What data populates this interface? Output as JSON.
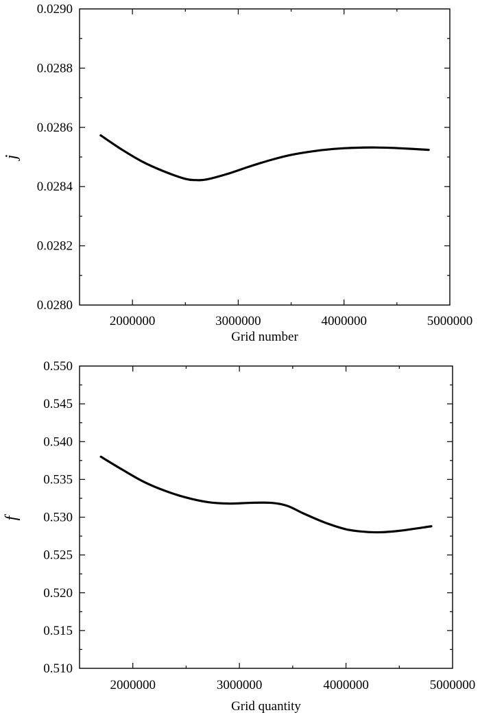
{
  "chart_data": [
    {
      "type": "line",
      "xlabel": "Grid number",
      "ylabel": "j",
      "xlim": [
        1500000,
        5000000
      ],
      "ylim": [
        0.028,
        0.029
      ],
      "x_ticks": [
        "2000000",
        "3000000",
        "4000000",
        "5000000"
      ],
      "y_ticks": [
        "0.0280",
        "0.0282",
        "0.0284",
        "0.0286",
        "0.0288",
        "0.0290"
      ],
      "series": [
        {
          "x": [
            1700000,
            1900000,
            2100000,
            2300000,
            2500000,
            2600000,
            2700000,
            2900000,
            3100000,
            3300000,
            3500000,
            3700000,
            3900000,
            4100000,
            4300000,
            4500000,
            4800000
          ],
          "values": [
            0.028573,
            0.028525,
            0.028483,
            0.028451,
            0.028426,
            0.028422,
            0.028424,
            0.028443,
            0.028467,
            0.028489,
            0.028507,
            0.028519,
            0.028527,
            0.028531,
            0.028532,
            0.02853,
            0.028524
          ]
        }
      ]
    },
    {
      "type": "line",
      "xlabel": "Grid quantity",
      "ylabel": "f",
      "xlim": [
        1500000,
        5000000
      ],
      "ylim": [
        0.51,
        0.55
      ],
      "x_ticks": [
        "2000000",
        "3000000",
        "4000000",
        "5000000"
      ],
      "y_ticks": [
        "0.510",
        "0.515",
        "0.520",
        "0.525",
        "0.530",
        "0.535",
        "0.540",
        "0.545",
        "0.550"
      ],
      "series": [
        {
          "x": [
            1700000,
            1900000,
            2100000,
            2300000,
            2500000,
            2700000,
            2900000,
            3100000,
            3300000,
            3450000,
            3600000,
            3800000,
            4000000,
            4150000,
            4300000,
            4500000,
            4800000
          ],
          "values": [
            0.538,
            0.5363,
            0.5347,
            0.5335,
            0.5326,
            0.532,
            0.5318,
            0.5319,
            0.5319,
            0.5315,
            0.5305,
            0.5293,
            0.5284,
            0.5281,
            0.528,
            0.5282,
            0.5288
          ]
        }
      ]
    }
  ]
}
